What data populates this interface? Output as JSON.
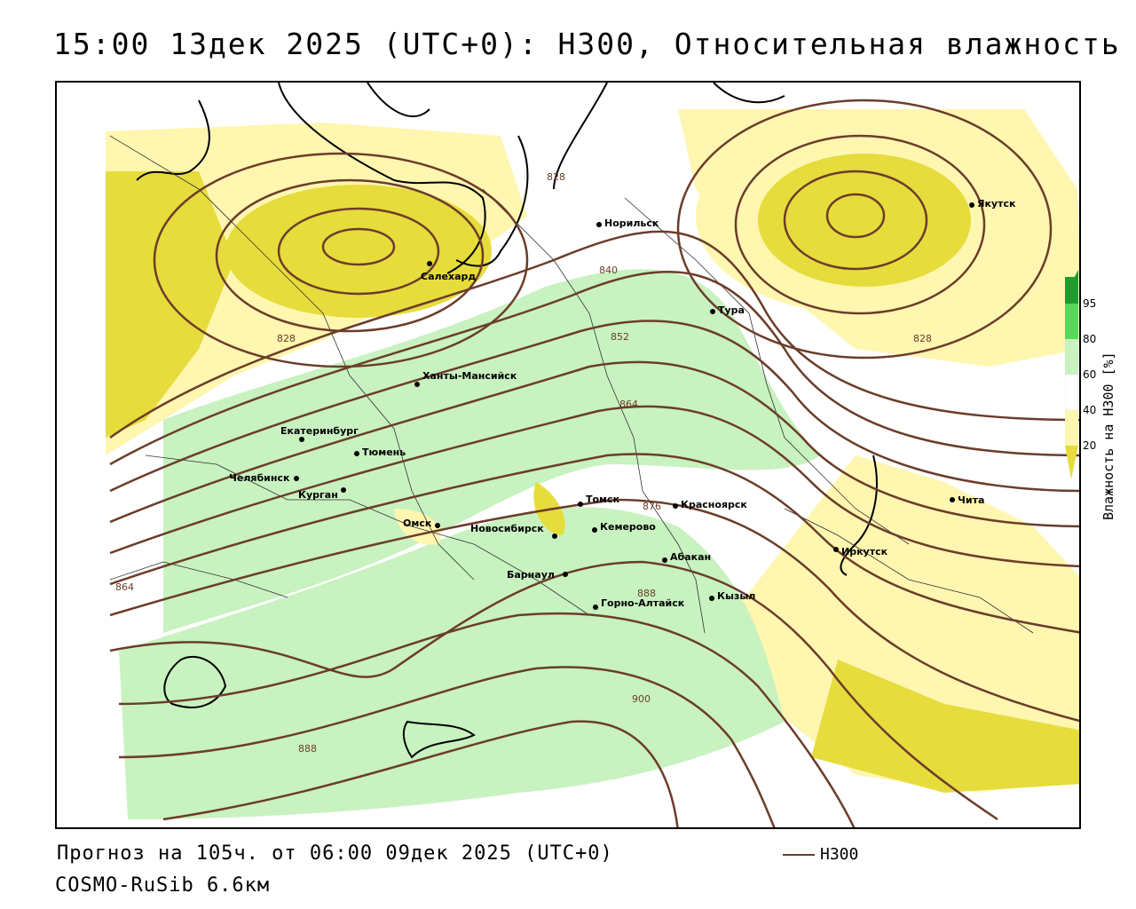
{
  "title": "15:00 13дек 2025 (UTC+0): H300, Относительная влажность",
  "forecast_line": "Прогноз на 105ч. от 06:00 09дек 2025 (UTC+0)",
  "model_line": "COSMO-RuSib 6.6км",
  "legend": {
    "h300_label": "H300"
  },
  "colorbar": {
    "label": "Влажность на H300 [%]",
    "ticks": [
      "20",
      "40",
      "60",
      "80",
      "95"
    ]
  },
  "colors": {
    "contour": "#6b3d2a",
    "dry_light": "#fff6b0",
    "dry_dark": "#e6dc3c",
    "moist_light": "#c8f2c0",
    "moist_mid": "#58d85a",
    "moist_dark": "#1e9b2e"
  },
  "contour_labels": [
    "828",
    "828",
    "828",
    "840",
    "852",
    "864",
    "864",
    "876",
    "888",
    "888",
    "900"
  ],
  "cities": [
    "Якутск",
    "Норильск",
    "Салехард",
    "Тура",
    "Ханты-Мансийск",
    "Екатеринбург",
    "Тюмень",
    "Челябинск",
    "Курган",
    "Омск",
    "Новосибирск",
    "Томск",
    "Красноярск",
    "Кемерово",
    "Абакан",
    "Барнаул",
    "Горно-Алтайск",
    "Кызыл",
    "Иркутск",
    "Чита"
  ]
}
